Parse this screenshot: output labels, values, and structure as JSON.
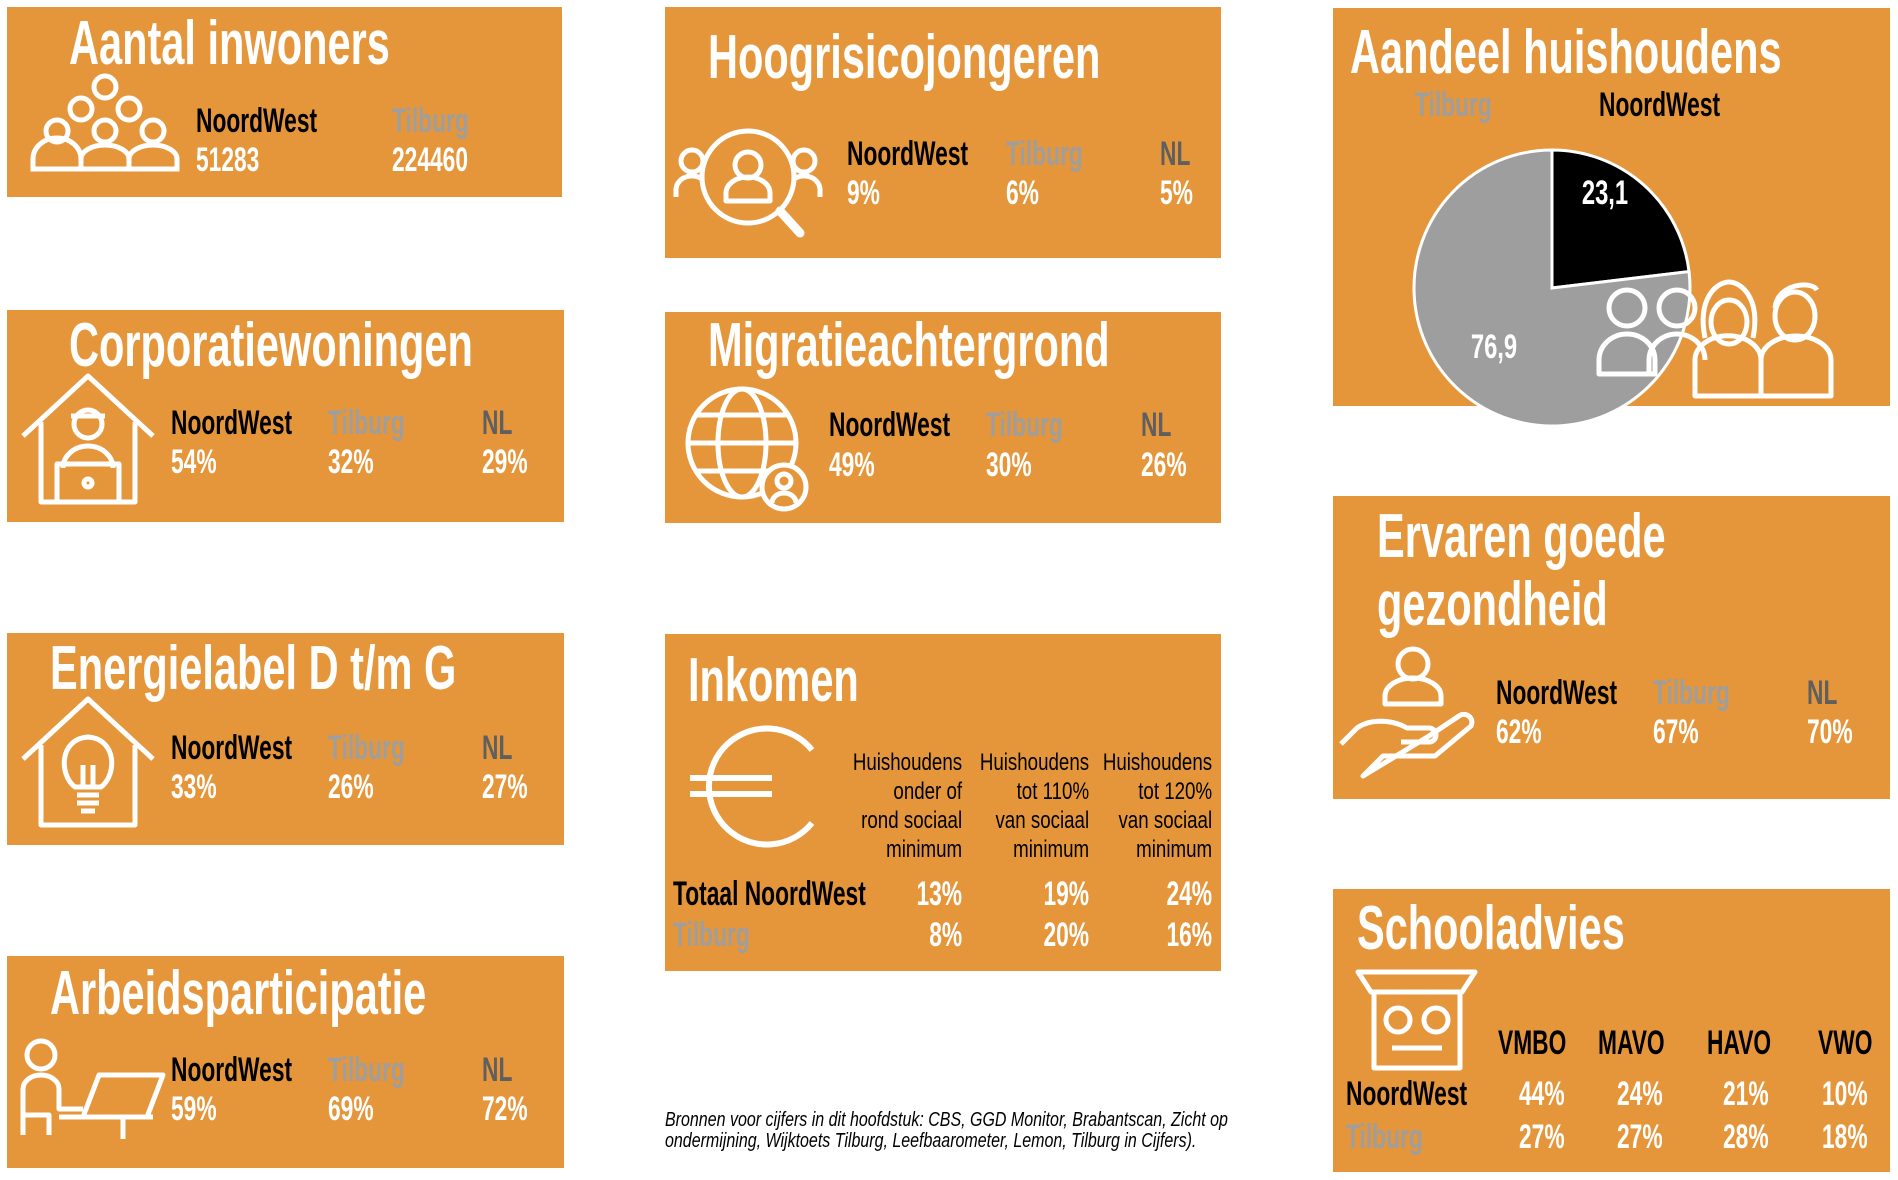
{
  "colors": {
    "box": "#E5963A",
    "noordwest": "#000000",
    "tilburg": "#9E9E9E",
    "nl": "#5f5f5f"
  },
  "inwoners": {
    "title": "Aantal inwoners",
    "icon": "people-group-icon",
    "noordwest_label": "NoordWest",
    "tilburg_label": "Tilburg",
    "noordwest": "51283",
    "tilburg": "224460"
  },
  "corporatie": {
    "title": "Corporatiewoningen",
    "icon": "house-person-laptop-icon",
    "noordwest_label": "NoordWest",
    "tilburg_label": "Tilburg",
    "nl_label": "NL",
    "noordwest": "54%",
    "tilburg": "32%",
    "nl": "29%"
  },
  "energie": {
    "title": "Energielabel D t/m G",
    "icon": "house-lightbulb-icon",
    "noordwest_label": "NoordWest",
    "tilburg_label": "Tilburg",
    "nl_label": "NL",
    "noordwest": "33%",
    "tilburg": "26%",
    "nl": "27%"
  },
  "arbeid": {
    "title": "Arbeidsparticipatie",
    "icon": "person-at-desk-icon",
    "noordwest_label": "NoordWest",
    "tilburg_label": "Tilburg",
    "nl_label": "NL",
    "noordwest": "59%",
    "tilburg": "69%",
    "nl": "72%"
  },
  "hoogrisico": {
    "title": "Hoogrisicojongeren",
    "icon": "magnifier-person-icon",
    "noordwest_label": "NoordWest",
    "tilburg_label": "Tilburg",
    "nl_label": "NL",
    "noordwest": "9%",
    "tilburg": "6%",
    "nl": "5%"
  },
  "migratie": {
    "title": "Migratieachtergrond",
    "icon": "globe-person-icon",
    "noordwest_label": "NoordWest",
    "tilburg_label": "Tilburg",
    "nl_label": "NL",
    "noordwest": "49%",
    "tilburg": "30%",
    "nl": "26%"
  },
  "inkomen": {
    "title": "Inkomen",
    "icon": "euro-icon",
    "headers": [
      [
        "Huishoudens",
        "onder of",
        "rond sociaal",
        "minimum"
      ],
      [
        "Huishoudens",
        "tot 110%",
        "van sociaal",
        "minimum"
      ],
      [
        "Huishoudens",
        "tot 120%",
        "van sociaal",
        "minimum"
      ]
    ],
    "rows": [
      {
        "label": "Totaal NoordWest",
        "values": [
          "13%",
          "19%",
          "24%"
        ]
      },
      {
        "label": "Tilburg",
        "values": [
          "8%",
          "20%",
          "16%"
        ]
      }
    ]
  },
  "sources": "Bronnen voor cijfers in dit hoofdstuk: CBS, GGD Monitor, Brabantscan, Zicht op ondermijning, Wijktoets Tilburg, Leefbaarometer, Lemon, Tilburg in Cijfers).",
  "aandeel": {
    "title": "Aandeel huishoudens",
    "icon": "family-icon",
    "tilburg_label": "Tilburg",
    "noordwest_label": "NoordWest"
  },
  "chart_data": {
    "type": "pie",
    "title": "Aandeel huishoudens",
    "slices": [
      {
        "label": "NoordWest",
        "value": 23.1,
        "display": "23,1",
        "color": "#000000"
      },
      {
        "label": "Tilburg",
        "value": 76.9,
        "display": "76,9",
        "color": "#9E9E9E"
      }
    ],
    "start": "12 o'clock, clockwise"
  },
  "gezondheid": {
    "title_line1": "Ervaren goede",
    "title_line2": "gezondheid",
    "icon": "hand-person-icon",
    "noordwest_label": "NoordWest",
    "tilburg_label": "Tilburg",
    "nl_label": "NL",
    "noordwest": "62%",
    "tilburg": "67%",
    "nl": "70%"
  },
  "school": {
    "title": "Schooladvies",
    "icon": "scale-icon",
    "headers": [
      "VMBO",
      "MAVO",
      "HAVO",
      "VWO"
    ],
    "rows": [
      {
        "label": "NoordWest",
        "values": [
          "44%",
          "24%",
          "21%",
          "10%"
        ]
      },
      {
        "label": "Tilburg",
        "values": [
          "27%",
          "27%",
          "28%",
          "18%"
        ]
      }
    ]
  }
}
